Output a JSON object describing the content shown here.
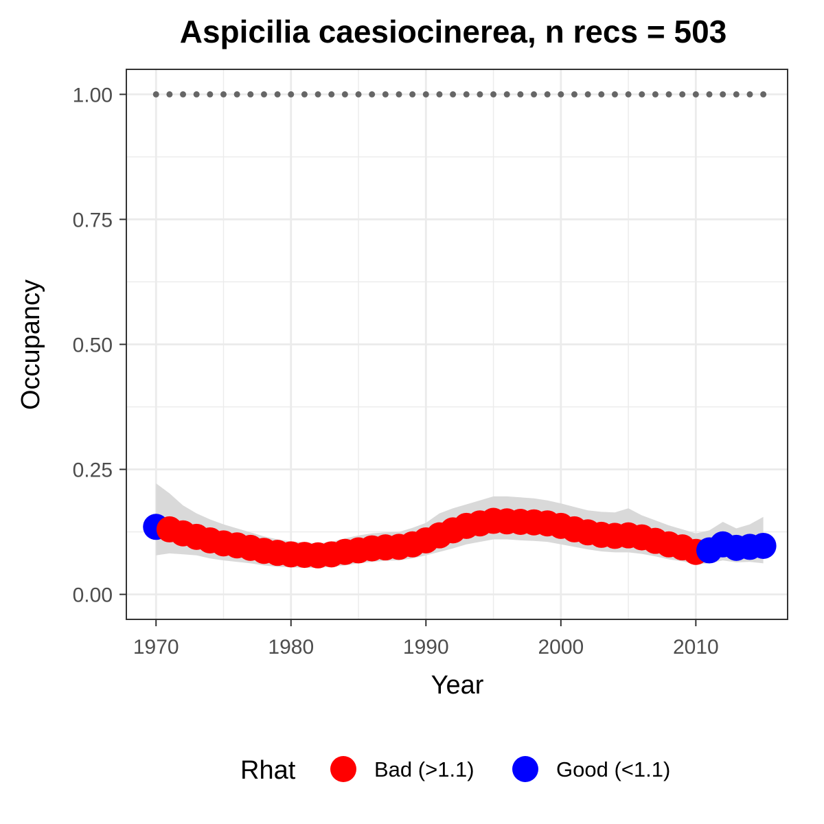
{
  "chart_data": {
    "type": "scatter",
    "title": "Aspicilia caesiocinerea, n recs = 503",
    "xlabel": "Year",
    "ylabel": "Occupancy",
    "xlim": [
      1967.8,
      2016.8
    ],
    "ylim": [
      -0.05,
      1.05
    ],
    "x_ticks": [
      1970,
      1980,
      1990,
      2000,
      2010
    ],
    "y_ticks": [
      0.0,
      0.25,
      0.5,
      0.75,
      1.0
    ],
    "x_tick_labels": [
      "1970",
      "1980",
      "1990",
      "2000",
      "2010"
    ],
    "y_tick_labels": [
      "0.00",
      "0.25",
      "0.50",
      "0.75",
      "1.00"
    ],
    "grid": true,
    "legend": {
      "title": "Rhat",
      "position": "bottom",
      "entries": [
        {
          "label": "Bad (>1.1)",
          "color": "#ff0000"
        },
        {
          "label": "Good (<1.1)",
          "color": "#0000ff"
        }
      ]
    },
    "colors": {
      "bad": "#ff0000",
      "good": "#0000ff",
      "ribbon": "#d9d9d9",
      "reference_points": "#666666",
      "panel_border": "#333333",
      "grid": "#ebebeb"
    },
    "reference_series": {
      "y": 1.0,
      "x_start": 1970,
      "x_end": 2015,
      "step": 1
    },
    "series": [
      {
        "x": [
          1970,
          1971,
          1972,
          1973,
          1974,
          1975,
          1976,
          1977,
          1978,
          1979,
          1980,
          1981,
          1982,
          1983,
          1984,
          1985,
          1986,
          1987,
          1988,
          1989,
          1990,
          1991,
          1992,
          1993,
          1994,
          1995,
          1996,
          1997,
          1998,
          1999,
          2000,
          2001,
          2002,
          2003,
          2004,
          2005,
          2006,
          2007,
          2008,
          2009,
          2010,
          2011,
          2012,
          2013,
          2014,
          2015
        ],
        "y": [
          0.135,
          0.13,
          0.122,
          0.115,
          0.108,
          0.102,
          0.098,
          0.093,
          0.087,
          0.083,
          0.08,
          0.079,
          0.078,
          0.08,
          0.085,
          0.088,
          0.092,
          0.094,
          0.095,
          0.1,
          0.108,
          0.118,
          0.128,
          0.137,
          0.142,
          0.147,
          0.146,
          0.145,
          0.144,
          0.142,
          0.137,
          0.13,
          0.124,
          0.119,
          0.117,
          0.118,
          0.114,
          0.107,
          0.1,
          0.094,
          0.085,
          0.088,
          0.1,
          0.093,
          0.095,
          0.097
        ],
        "lower": [
          0.078,
          0.082,
          0.08,
          0.078,
          0.072,
          0.068,
          0.065,
          0.062,
          0.058,
          0.055,
          0.054,
          0.053,
          0.053,
          0.055,
          0.058,
          0.062,
          0.065,
          0.067,
          0.068,
          0.072,
          0.078,
          0.085,
          0.092,
          0.1,
          0.105,
          0.11,
          0.11,
          0.108,
          0.107,
          0.105,
          0.1,
          0.095,
          0.09,
          0.086,
          0.084,
          0.084,
          0.081,
          0.076,
          0.07,
          0.066,
          0.06,
          0.062,
          0.068,
          0.064,
          0.065,
          0.062
        ],
        "upper": [
          0.222,
          0.202,
          0.178,
          0.162,
          0.15,
          0.14,
          0.132,
          0.124,
          0.116,
          0.11,
          0.106,
          0.104,
          0.102,
          0.105,
          0.112,
          0.118,
          0.122,
          0.124,
          0.125,
          0.133,
          0.143,
          0.162,
          0.172,
          0.18,
          0.188,
          0.196,
          0.196,
          0.194,
          0.192,
          0.188,
          0.182,
          0.175,
          0.168,
          0.165,
          0.164,
          0.172,
          0.158,
          0.148,
          0.138,
          0.13,
          0.122,
          0.128,
          0.145,
          0.132,
          0.14,
          0.155
        ],
        "rhat": [
          "Good",
          "Bad",
          "Bad",
          "Bad",
          "Bad",
          "Bad",
          "Bad",
          "Bad",
          "Bad",
          "Bad",
          "Bad",
          "Bad",
          "Bad",
          "Bad",
          "Bad",
          "Bad",
          "Bad",
          "Bad",
          "Bad",
          "Bad",
          "Bad",
          "Bad",
          "Bad",
          "Bad",
          "Bad",
          "Bad",
          "Bad",
          "Bad",
          "Bad",
          "Bad",
          "Bad",
          "Bad",
          "Bad",
          "Bad",
          "Bad",
          "Bad",
          "Bad",
          "Bad",
          "Bad",
          "Bad",
          "Bad",
          "Good",
          "Good",
          "Good",
          "Good",
          "Good"
        ]
      }
    ]
  }
}
